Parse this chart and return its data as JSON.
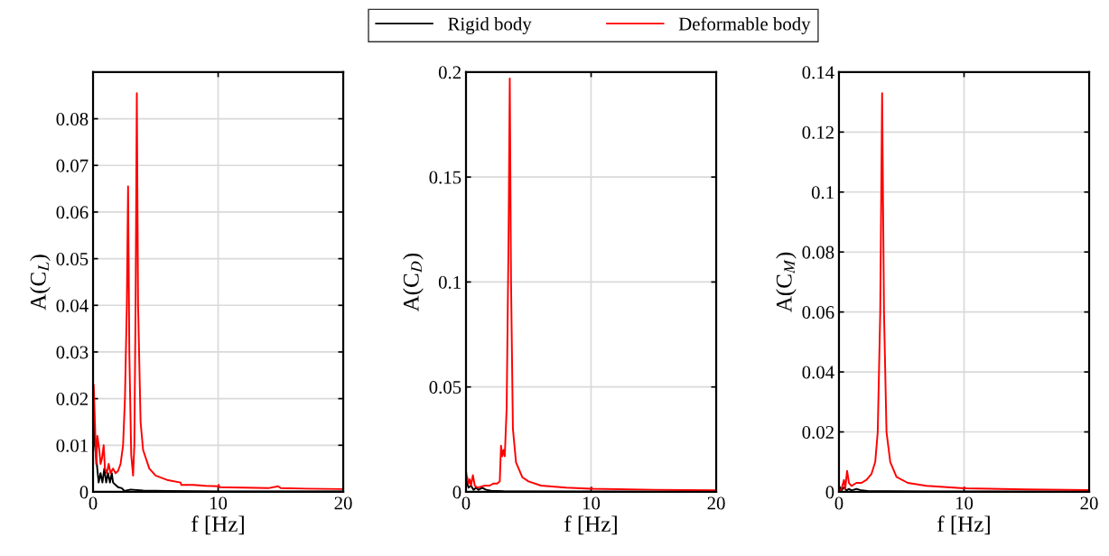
{
  "chart_data": [
    {
      "type": "line",
      "xlabel": "f [Hz]",
      "ylabel": "A(C$_{L}$)",
      "xlim": [
        0,
        20
      ],
      "xticks": [
        0,
        10,
        20
      ],
      "ylim": [
        0,
        0.09
      ],
      "yticks": [
        0,
        0.01,
        0.02,
        0.03,
        0.04,
        0.05,
        0.06,
        0.07,
        0.08,
        {
          "value": 0.09,
          "label": null
        }
      ],
      "grid": true,
      "legend": "top",
      "series": [
        {
          "name": "Rigid body",
          "color": "#000000",
          "x": [
            0,
            0.05,
            0.15,
            0.3,
            0.45,
            0.6,
            0.75,
            0.9,
            1.05,
            1.2,
            1.35,
            1.5,
            1.6,
            1.8,
            2.0,
            2.3,
            2.5,
            3,
            4,
            6,
            10,
            20
          ],
          "values": [
            0.02,
            0.019,
            0.01,
            0.006,
            0.002,
            0.004,
            0.002,
            0.005,
            0.002,
            0.004,
            0.002,
            0.004,
            0.002,
            0.0015,
            0.001,
            0.0008,
            0.0002,
            0.0005,
            0.0003,
            0.0002,
            0.0001,
            0.0001
          ]
        },
        {
          "name": "Deformable body",
          "color": "#ff0000",
          "x": [
            0,
            0.05,
            0.15,
            0.25,
            0.35,
            0.5,
            0.6,
            0.7,
            0.85,
            0.95,
            1.1,
            1.25,
            1.4,
            1.6,
            1.8,
            2.0,
            2.2,
            2.4,
            2.55,
            2.7,
            2.8,
            2.9,
            3.05,
            3.2,
            3.3,
            3.4,
            3.5,
            3.6,
            3.8,
            4.0,
            4.5,
            5,
            6,
            7,
            7.05,
            8,
            9,
            10,
            10.05,
            10.1,
            12,
            14,
            14.8,
            15,
            17,
            20
          ],
          "values": [
            0.02,
            0.023,
            0.015,
            0.006,
            0.012,
            0.009,
            0.006,
            0.007,
            0.01,
            0.005,
            0.004,
            0.006,
            0.004,
            0.005,
            0.004,
            0.0045,
            0.006,
            0.01,
            0.02,
            0.04,
            0.0655,
            0.03,
            0.008,
            0.0035,
            0.01,
            0.04,
            0.0855,
            0.04,
            0.015,
            0.009,
            0.005,
            0.0035,
            0.0025,
            0.002,
            0.0015,
            0.0015,
            0.0013,
            0.0012,
            0.0015,
            0.001,
            0.0009,
            0.0008,
            0.0012,
            0.0008,
            0.0007,
            0.0006
          ]
        }
      ]
    },
    {
      "type": "line",
      "xlabel": "f [Hz]",
      "ylabel": "A(C$_{D}$)",
      "xlim": [
        0,
        20
      ],
      "xticks": [
        0,
        10,
        20
      ],
      "ylim": [
        0,
        0.2
      ],
      "yticks": [
        0,
        0.05,
        0.1,
        0.15,
        0.2
      ],
      "grid": true,
      "series": [
        {
          "name": "Rigid body",
          "color": "#000000",
          "x": [
            0,
            0.1,
            0.2,
            0.4,
            0.6,
            0.8,
            1.0,
            1.3,
            1.6,
            2,
            3,
            5,
            20
          ],
          "values": [
            0.01,
            0.004,
            0.002,
            0.003,
            0.001,
            0.002,
            0.001,
            0.002,
            0.001,
            0.0005,
            0.0003,
            0.0002,
            0.0001
          ]
        },
        {
          "name": "Deformable body",
          "color": "#ff0000",
          "x": [
            0,
            0.1,
            0.2,
            0.3,
            0.4,
            0.55,
            0.7,
            0.9,
            1.2,
            1.5,
            1.9,
            2.2,
            2.5,
            2.7,
            2.8,
            2.9,
            3.0,
            3.1,
            3.25,
            3.4,
            3.5,
            3.6,
            3.75,
            4,
            4.5,
            5,
            6,
            8,
            10,
            10.05,
            10.1,
            15,
            20
          ],
          "values": [
            0.005,
            0.007,
            0.004,
            0.006,
            0.003,
            0.008,
            0.003,
            0.002,
            0.0025,
            0.003,
            0.003,
            0.004,
            0.004,
            0.005,
            0.022,
            0.017,
            0.02,
            0.017,
            0.04,
            0.12,
            0.197,
            0.1,
            0.03,
            0.014,
            0.007,
            0.005,
            0.003,
            0.002,
            0.0015,
            0.002,
            0.0015,
            0.001,
            0.0008
          ]
        }
      ]
    },
    {
      "type": "line",
      "xlabel": "f [Hz]",
      "ylabel": "A(C$_{M}$)",
      "xlim": [
        0,
        20
      ],
      "xticks": [
        0,
        10,
        20
      ],
      "ylim": [
        0,
        0.14
      ],
      "yticks": [
        0,
        0.02,
        0.04,
        0.06,
        0.08,
        0.1,
        0.12,
        0.14
      ],
      "grid": true,
      "series": [
        {
          "name": "Rigid body",
          "color": "#000000",
          "x": [
            0,
            0.2,
            0.4,
            0.6,
            0.8,
            1.0,
            1.4,
            1.8,
            2.3,
            4,
            20
          ],
          "values": [
            0.002,
            0.0005,
            0.0015,
            0.0005,
            0.001,
            0.0005,
            0.001,
            0.0005,
            0.0003,
            0.0002,
            0.0001
          ]
        },
        {
          "name": "Deformable body",
          "color": "#ff0000",
          "x": [
            0,
            0.2,
            0.4,
            0.5,
            0.65,
            0.8,
            1.0,
            1.4,
            1.8,
            2.2,
            2.6,
            2.9,
            3.1,
            3.3,
            3.45,
            3.6,
            3.8,
            4.1,
            4.6,
            5.5,
            7,
            10,
            10.05,
            10.1,
            15,
            20
          ],
          "values": [
            0.0,
            0.001,
            0.004,
            0.001,
            0.007,
            0.003,
            0.002,
            0.003,
            0.003,
            0.004,
            0.006,
            0.01,
            0.02,
            0.06,
            0.133,
            0.06,
            0.02,
            0.01,
            0.005,
            0.003,
            0.002,
            0.0012,
            0.0015,
            0.0012,
            0.0008,
            0.0006
          ]
        }
      ]
    }
  ]
}
